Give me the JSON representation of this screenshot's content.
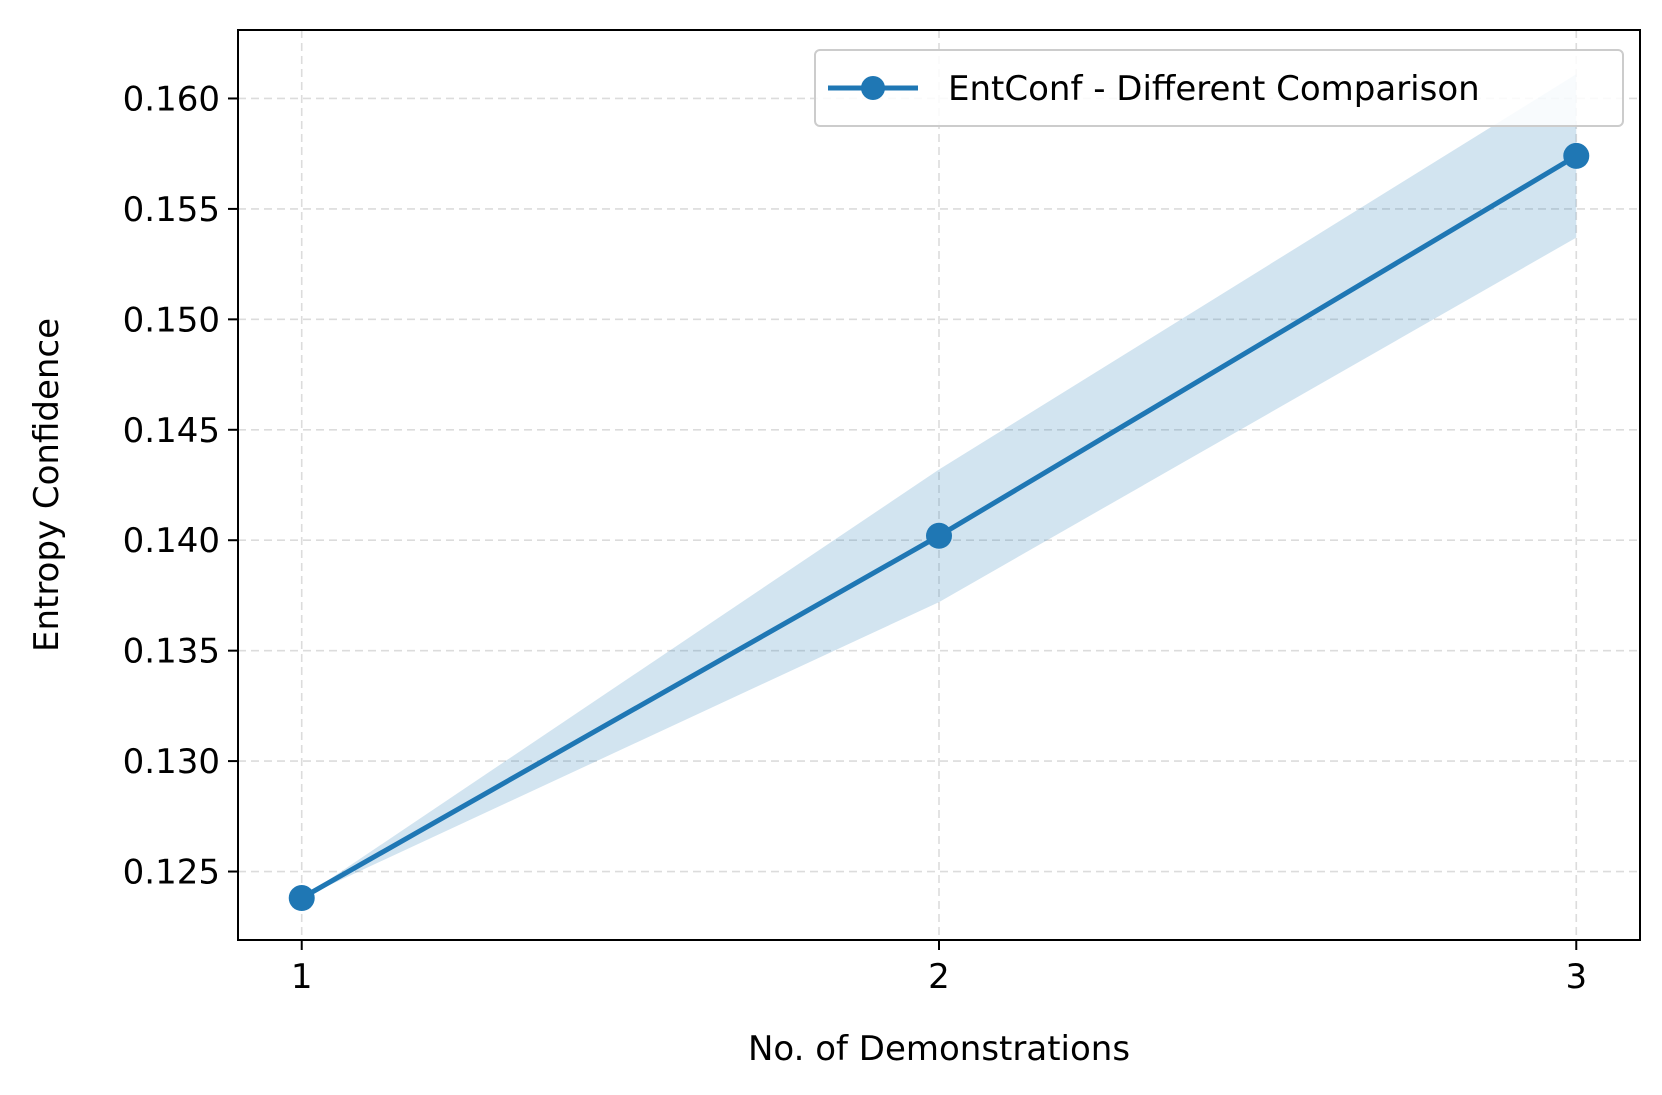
{
  "chart_data": {
    "type": "line",
    "title": "",
    "xlabel": "No. of Demonstrations",
    "ylabel": "Entropy Confidence",
    "x": [
      1,
      2,
      3
    ],
    "x_ticks": [
      "1",
      "2",
      "3"
    ],
    "y_ticks": [
      "0.125",
      "0.130",
      "0.135",
      "0.140",
      "0.145",
      "0.150",
      "0.155",
      "0.160"
    ],
    "xlim": [
      0.9,
      3.1
    ],
    "ylim": [
      0.1219,
      0.1631
    ],
    "grid": true,
    "legend_position": "top-right",
    "series": [
      {
        "name": "EntConf - Different Comparison",
        "color": "#1f77b4",
        "marker": "circle",
        "values": [
          0.1238,
          0.1402,
          0.1574
        ],
        "band_lower": [
          0.1238,
          0.1372,
          0.1537
        ],
        "band_upper": [
          0.1238,
          0.1432,
          0.1611
        ]
      }
    ]
  }
}
